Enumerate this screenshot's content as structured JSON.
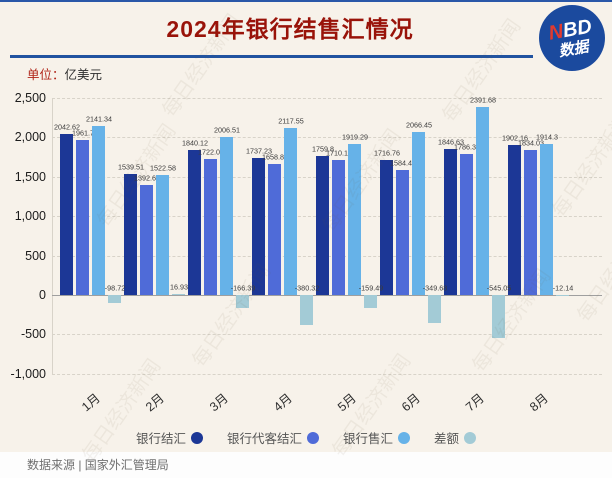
{
  "page": {
    "background": "#f7f2ea",
    "top_line_color": "#2a57a8"
  },
  "header": {
    "title": "2024年银行结售汇情况",
    "title_color": "#991309",
    "divider_color": "#2153a0",
    "logo": {
      "n": "N",
      "bd": "BD",
      "line2": "数据",
      "bg": "#1b4a9e",
      "n_color": "#e23a2e"
    }
  },
  "unit": {
    "prefix": "单位：",
    "text": "亿美元"
  },
  "watermark": {
    "text": "每日经济新闻"
  },
  "footer": {
    "source": "数据来源 | 国家外汇管理局"
  },
  "chart_data": {
    "type": "bar",
    "title": "2024年银行结售汇情况",
    "unit": "亿美元",
    "categories": [
      "1月",
      "2月",
      "3月",
      "4月",
      "5月",
      "6月",
      "7月",
      "8月"
    ],
    "series": [
      {
        "key": "settlement",
        "name": "银行结汇",
        "color": "#1c3796",
        "values": [
          2042.62,
          1539.51,
          1840.12,
          1737.23,
          1759.8,
          1716.76,
          1846.63,
          1902.16
        ],
        "labels": [
          "2042.62",
          "1539.51",
          "1840.12",
          "1737.23",
          "1759.8",
          "1716.76",
          "1846.63",
          "1902.16"
        ]
      },
      {
        "key": "customer-settlement",
        "name": "银行代客结汇",
        "color": "#4f6bd8",
        "values": [
          1961.7,
          1392.67,
          1722.03,
          1658.86,
          1710.15,
          1584.47,
          1786.35,
          1834.03
        ],
        "labels": [
          "1961.7",
          "1392.67",
          "1722.03",
          "1658.86",
          "1710.15",
          "1584.47",
          "1786.35",
          "1834.03"
        ]
      },
      {
        "key": "sales",
        "name": "银行售汇",
        "color": "#66b2e8",
        "values": [
          2141.34,
          1522.58,
          2006.51,
          2117.55,
          1919.29,
          2066.45,
          2391.68,
          1914.3
        ],
        "labels": [
          "2141.34",
          "1522.58",
          "2006.51",
          "2117.55",
          "1919.29",
          "2066.45",
          "2391.68",
          "1914.3"
        ]
      },
      {
        "key": "balance",
        "name": "差额",
        "color": "#a3cbd6",
        "values": [
          -98.72,
          16.93,
          -166.39,
          -380.32,
          -159.49,
          -349.68,
          -545.05,
          -12.14
        ],
        "labels": [
          "-98.72",
          "16.93",
          "-166.39",
          "-380.32",
          "-159.49",
          "-349.68",
          "-545.05",
          "-12.14"
        ]
      }
    ],
    "ylim": [
      -1000,
      2500
    ],
    "yticks": [
      {
        "value": 2500,
        "label": "2,500"
      },
      {
        "value": 2000,
        "label": "2,000"
      },
      {
        "value": 1500,
        "label": "1,500"
      },
      {
        "value": 1000,
        "label": "1,000"
      },
      {
        "value": 500,
        "label": "500"
      },
      {
        "value": 0,
        "label": "0"
      },
      {
        "value": -500,
        "label": "-500"
      },
      {
        "value": -1000,
        "label": "-1,000"
      }
    ],
    "grid": true,
    "legend_position": "bottom"
  }
}
